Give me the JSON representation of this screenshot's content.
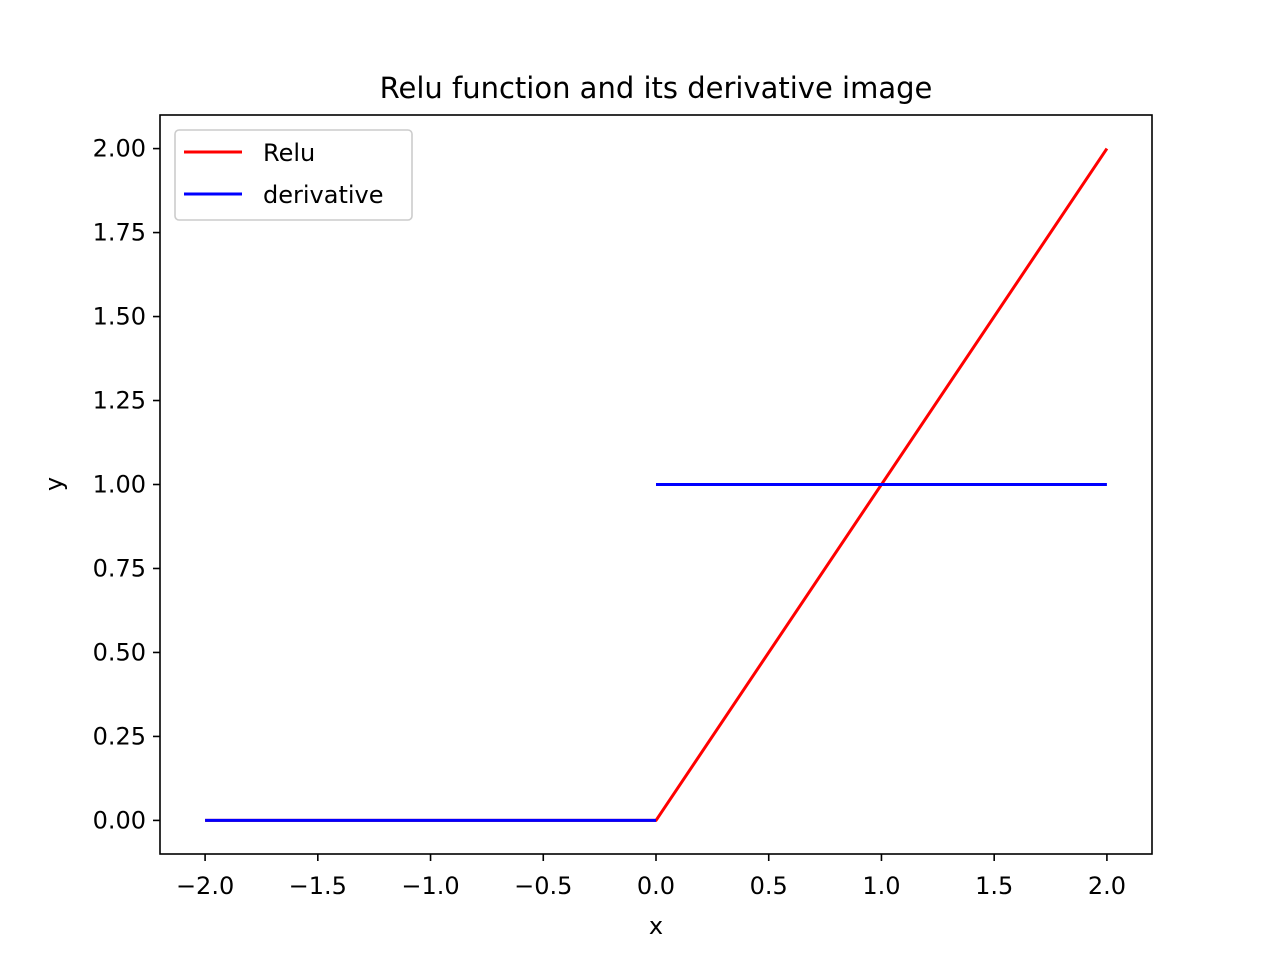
{
  "chart_data": {
    "type": "line",
    "title": "Relu function and its derivative image",
    "xlabel": "x",
    "ylabel": "y",
    "xlim": [
      -2.2,
      2.2
    ],
    "ylim": [
      -0.1,
      2.1
    ],
    "xticks": [
      -2.0,
      -1.5,
      -1.0,
      -0.5,
      0.0,
      0.5,
      1.0,
      1.5,
      2.0
    ],
    "xtick_labels": [
      "−2.0",
      "−1.5",
      "−1.0",
      "−0.5",
      "0.0",
      "0.5",
      "1.0",
      "1.5",
      "2.0"
    ],
    "yticks": [
      0.0,
      0.25,
      0.5,
      0.75,
      1.0,
      1.25,
      1.5,
      1.75,
      2.0
    ],
    "ytick_labels": [
      "0.00",
      "0.25",
      "0.50",
      "0.75",
      "1.00",
      "1.25",
      "1.50",
      "1.75",
      "2.00"
    ],
    "grid": false,
    "legend_position": "top-left",
    "series": [
      {
        "name": "Relu",
        "color": "#ff0000",
        "points": [
          [
            -2.0,
            0.0
          ],
          [
            0.0,
            0.0
          ],
          [
            0.02,
            0.02
          ],
          [
            2.0,
            2.0
          ]
        ]
      },
      {
        "name": "derivative",
        "color": "#0000ff",
        "segments": [
          [
            [
              -2.0,
              0.0
            ],
            [
              0.0,
              0.0
            ]
          ],
          [
            [
              0.0,
              1.0
            ],
            [
              2.0,
              1.0
            ]
          ]
        ]
      }
    ]
  }
}
